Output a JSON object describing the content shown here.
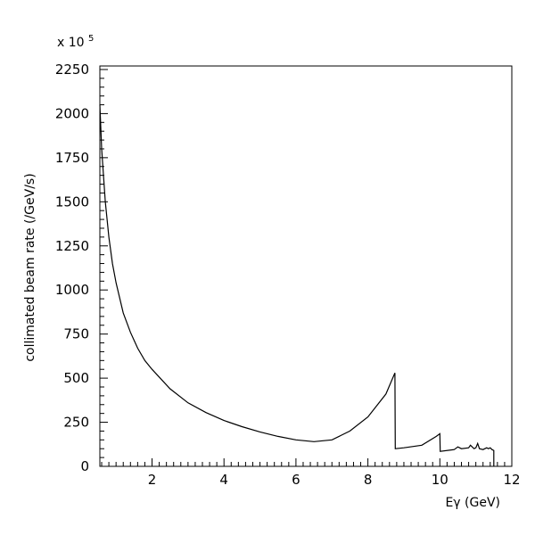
{
  "chart_data": {
    "type": "line",
    "xlabel": "Eγ (GeV)",
    "ylabel": "collimated beam rate (/GeV/s)",
    "y_scale_prefix": "x 10",
    "y_scale_exponent": "5",
    "xlim": [
      0.55,
      12
    ],
    "ylim": [
      0,
      2270
    ],
    "x_ticks": [
      "2",
      "4",
      "6",
      "8",
      "10",
      "12"
    ],
    "y_ticks": [
      "0",
      "250",
      "500",
      "750",
      "1000",
      "1250",
      "1500",
      "1750",
      "2000",
      "2250"
    ],
    "grid": false,
    "legend": "none",
    "line_color": "#000000",
    "series": [
      {
        "points": [
          [
            0.55,
            2050
          ],
          [
            0.6,
            1800
          ],
          [
            0.7,
            1500
          ],
          [
            0.8,
            1300
          ],
          [
            0.9,
            1150
          ],
          [
            1.0,
            1040
          ],
          [
            1.2,
            870
          ],
          [
            1.4,
            760
          ],
          [
            1.6,
            670
          ],
          [
            1.8,
            600
          ],
          [
            2.0,
            550
          ],
          [
            2.5,
            440
          ],
          [
            3.0,
            360
          ],
          [
            3.5,
            305
          ],
          [
            4.0,
            260
          ],
          [
            4.5,
            225
          ],
          [
            5.0,
            195
          ],
          [
            5.5,
            170
          ],
          [
            6.0,
            150
          ],
          [
            6.5,
            140
          ],
          [
            7.0,
            150
          ],
          [
            7.5,
            200
          ],
          [
            8.0,
            280
          ],
          [
            8.5,
            410
          ],
          [
            8.75,
            530
          ],
          [
            8.76,
            100
          ],
          [
            9.0,
            105
          ],
          [
            9.5,
            120
          ],
          [
            9.9,
            170
          ],
          [
            10.0,
            185
          ],
          [
            10.01,
            85
          ],
          [
            10.4,
            95
          ],
          [
            10.5,
            110
          ],
          [
            10.6,
            100
          ],
          [
            10.8,
            105
          ],
          [
            10.85,
            120
          ],
          [
            10.95,
            100
          ],
          [
            11.0,
            105
          ],
          [
            11.05,
            130
          ],
          [
            11.1,
            100
          ],
          [
            11.2,
            95
          ],
          [
            11.3,
            105
          ],
          [
            11.35,
            100
          ],
          [
            11.4,
            105
          ],
          [
            11.45,
            95
          ],
          [
            11.5,
            90
          ],
          [
            11.5,
            0
          ]
        ]
      }
    ]
  }
}
